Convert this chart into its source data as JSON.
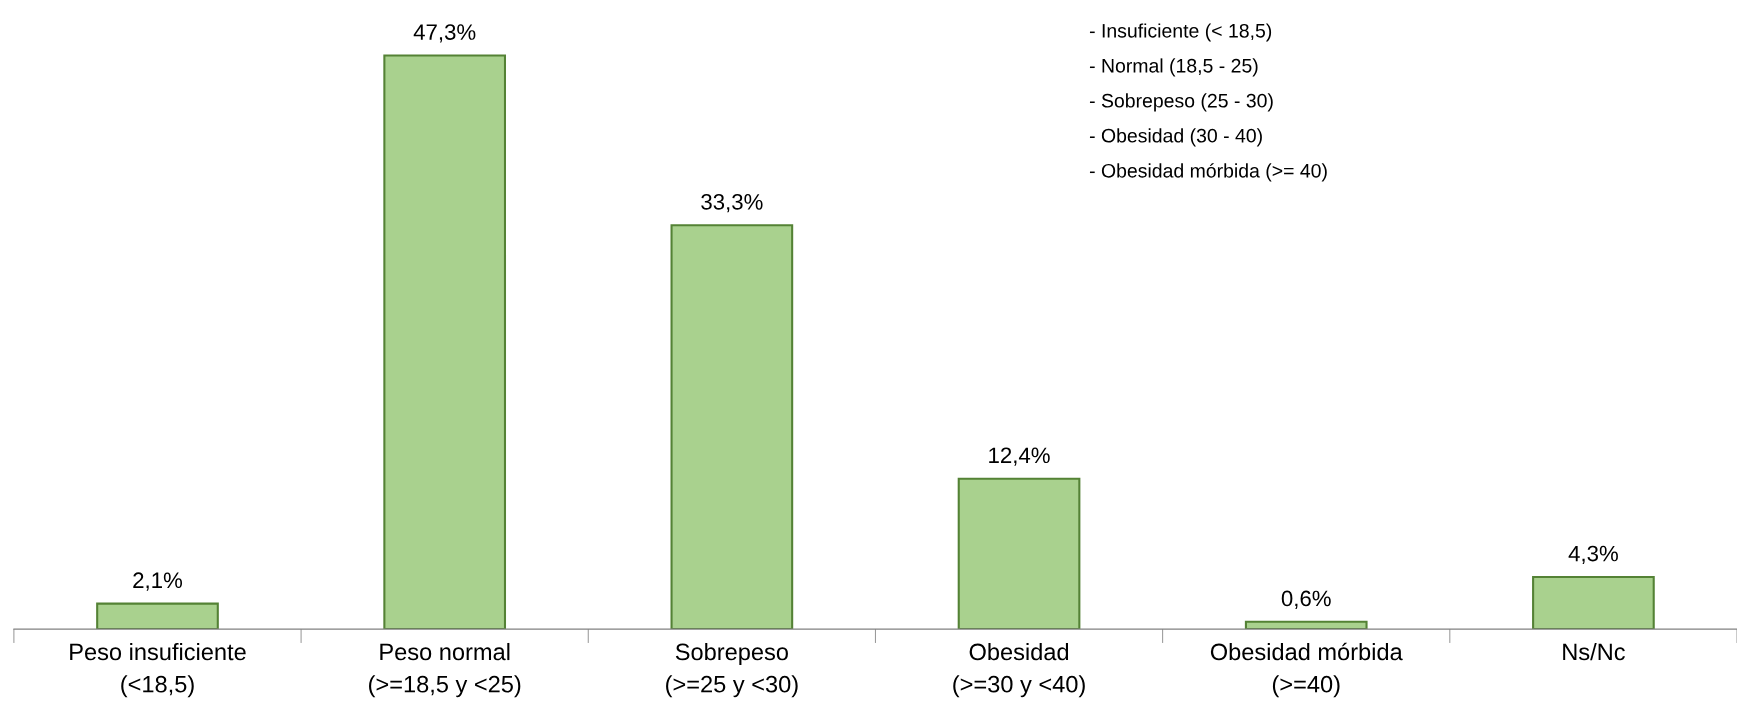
{
  "chart_data": {
    "type": "bar",
    "categories": [
      "Peso insuficiente\n(<18,5)",
      "Peso normal\n(>=18,5 y <25)",
      "Sobrepeso\n(>=25 y <30)",
      "Obesidad\n(>=30 y <40)",
      "Obesidad mórbida\n(>=40)",
      "Ns/Nc"
    ],
    "values": [
      2.1,
      47.3,
      33.3,
      12.4,
      0.6,
      4.3
    ],
    "value_labels": [
      "2,1%",
      "47,3%",
      "33,3%",
      "12,4%",
      "0,6%",
      "4,3%"
    ],
    "color": "#a9d18e",
    "tick_labels": "x",
    "grid": false,
    "legend": false,
    "annotations": [
      "- Insuficiente (< 18,5)",
      "- Normal (18,5 - 25)",
      "- Sobrepeso (25 - 30)",
      "- Obesidad (30 - 40)",
      "- Obesidad mórbida (>= 40)"
    ]
  }
}
